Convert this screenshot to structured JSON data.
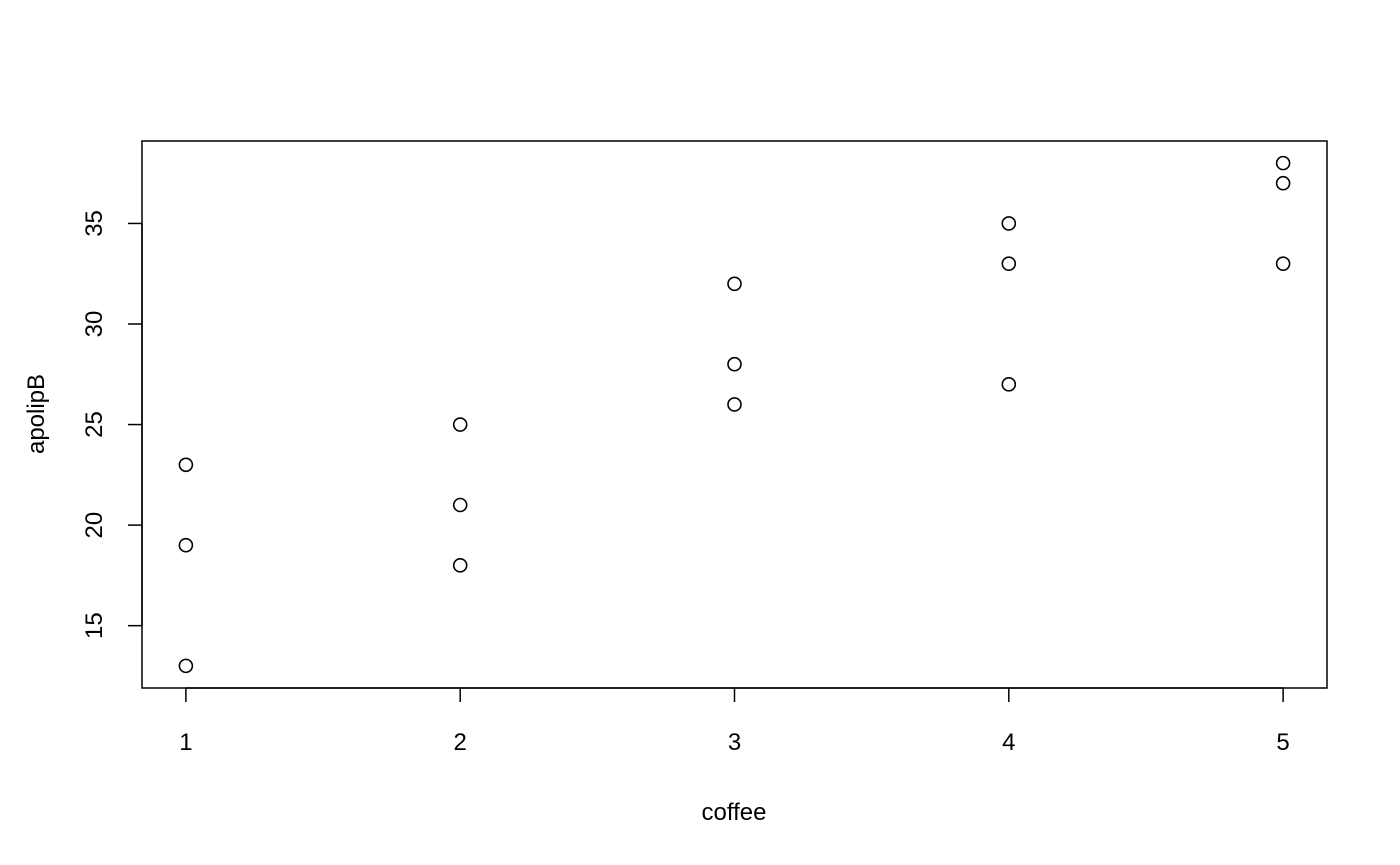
{
  "chart_data": {
    "type": "scatter",
    "title": "",
    "xlabel": "coffee",
    "ylabel": "apolipB",
    "xlim": [
      0.84,
      5.16
    ],
    "ylim": [
      11.9,
      39.1
    ],
    "xticks": [
      1,
      2,
      3,
      4,
      5
    ],
    "yticks": [
      15,
      20,
      25,
      30,
      35
    ],
    "grid": false,
    "legend": "none",
    "marker": "open-circle",
    "points": [
      {
        "x": 1,
        "y": 13
      },
      {
        "x": 1,
        "y": 19
      },
      {
        "x": 1,
        "y": 23
      },
      {
        "x": 2,
        "y": 18
      },
      {
        "x": 2,
        "y": 21
      },
      {
        "x": 2,
        "y": 25
      },
      {
        "x": 3,
        "y": 26
      },
      {
        "x": 3,
        "y": 28
      },
      {
        "x": 3,
        "y": 32
      },
      {
        "x": 4,
        "y": 27
      },
      {
        "x": 4,
        "y": 33
      },
      {
        "x": 4,
        "y": 35
      },
      {
        "x": 5,
        "y": 33
      },
      {
        "x": 5,
        "y": 37
      },
      {
        "x": 5,
        "y": 38
      }
    ],
    "colors": {
      "axis": "#000000",
      "point_stroke": "#000000",
      "background": "#ffffff"
    }
  }
}
